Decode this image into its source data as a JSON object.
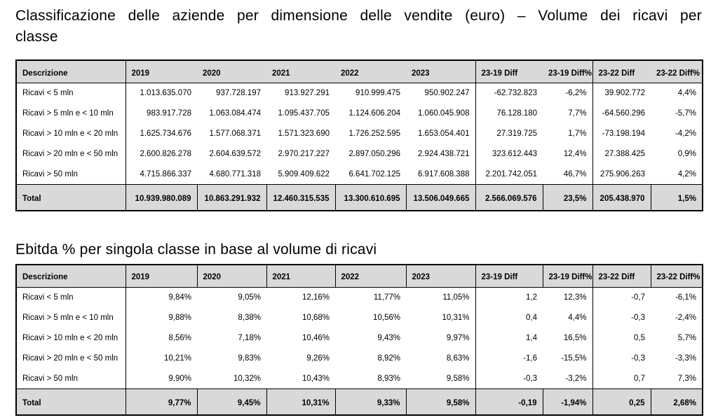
{
  "titles": {
    "main": "Classificazione delle aziende per dimensione delle vendite (euro) – Volume dei ricavi per classe",
    "ebitda": "Ebitda % per singola classe in base al volume di ricavi"
  },
  "columns": [
    "Descrizione",
    "2019",
    "2020",
    "2021",
    "2022",
    "2023",
    "23-19 Diff",
    "23-19 Diff%",
    "23-22 Diff",
    "23-22 Diff%"
  ],
  "ricavi_table": {
    "rows": [
      {
        "label": "Ricavi < 5 mln",
        "values": [
          "1.013.635.070",
          "937.728.197",
          "913.927.291",
          "910.999.475",
          "950.902.247",
          "-62.732.823",
          "-6,2%",
          "39.902.772",
          "4,4%"
        ]
      },
      {
        "label": "Ricavi > 5 mln e < 10 mln",
        "values": [
          "983.917.728",
          "1.063.084.474",
          "1.095.437.705",
          "1.124.606.204",
          "1.060.045.908",
          "76.128.180",
          "7,7%",
          "-64.560.296",
          "-5,7%"
        ]
      },
      {
        "label": "Ricavi > 10 mln e < 20 mln",
        "values": [
          "1.625.734.676",
          "1.577.068.371",
          "1.571.323.690",
          "1.726.252.595",
          "1.653.054.401",
          "27.319.725",
          "1,7%",
          "-73.198.194",
          "-4,2%"
        ]
      },
      {
        "label": "Ricavi > 20 mln e < 50 mln",
        "values": [
          "2.600.826.278",
          "2.604.639.572",
          "2.970.217.227",
          "2.897.050.296",
          "2.924.438.721",
          "323.612.443",
          "12,4%",
          "27.388.425",
          "0,9%"
        ]
      },
      {
        "label": "Ricavi > 50 mln",
        "values": [
          "4.715.866.337",
          "4.680.771.318",
          "5.909.409.622",
          "6.641.702.125",
          "6.917.608.388",
          "2.201.742.051",
          "46,7%",
          "275.906.263",
          "4,2%"
        ]
      }
    ],
    "total": {
      "label": "Total",
      "values": [
        "10.939.980.089",
        "10.863.291.932",
        "12.460.315.535",
        "13.300.610.695",
        "13.506.049.665",
        "2.566.069.576",
        "23,5%",
        "205.438.970",
        "1,5%"
      ]
    }
  },
  "ebitda_table": {
    "rows": [
      {
        "label": "Ricavi < 5 mln",
        "values": [
          "9,84%",
          "9,05%",
          "12,16%",
          "11,77%",
          "11,05%",
          "1,2",
          "12,3%",
          "-0,7",
          "-6,1%"
        ]
      },
      {
        "label": "Ricavi > 5 mln e < 10 mln",
        "values": [
          "9,88%",
          "8,38%",
          "10,68%",
          "10,56%",
          "10,31%",
          "0,4",
          "4,4%",
          "-0,3",
          "-2,4%"
        ]
      },
      {
        "label": "Ricavi > 10 mln e < 20 mln",
        "values": [
          "8,56%",
          "7,18%",
          "10,46%",
          "9,43%",
          "9,97%",
          "1,4",
          "16,5%",
          "0,5",
          "5,7%"
        ]
      },
      {
        "label": "Ricavi > 20 mln e < 50 mln",
        "values": [
          "10,21%",
          "9,83%",
          "9,26%",
          "8,92%",
          "8,63%",
          "-1,6",
          "-15,5%",
          "-0,3",
          "-3,3%"
        ]
      },
      {
        "label": "Ricavi > 50 mln",
        "values": [
          "9,90%",
          "10,32%",
          "10,43%",
          "8,93%",
          "9,58%",
          "-0,3",
          "-3,2%",
          "0,7",
          "7,3%"
        ]
      }
    ],
    "total": {
      "label": "Total",
      "values": [
        "9,77%",
        "9,45%",
        "10,31%",
        "9,33%",
        "9,58%",
        "-0,19",
        "-1,94%",
        "0,25",
        "2,68%"
      ]
    }
  },
  "colors": {
    "table_header_bg": "#d9d9d9",
    "total_row_bg": "#d9d9d9",
    "border": "#000000",
    "text": "#000000",
    "background": "#ffffff"
  }
}
